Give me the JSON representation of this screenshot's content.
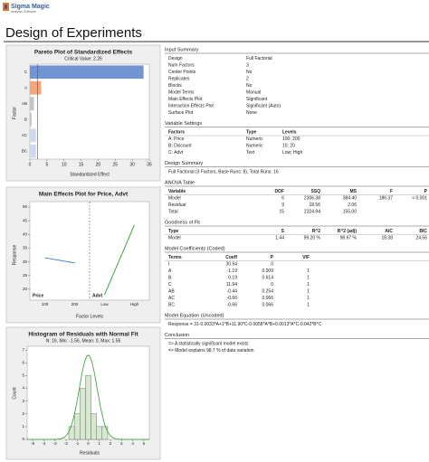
{
  "header": {
    "logo": "Sigma Magic",
    "logo_sub": "Analysis Software",
    "title": "Design of Experiments"
  },
  "chart_data": [
    {
      "type": "pareto",
      "title": "Pareto Plot of Standardized Effects",
      "subtitle": "Critical Value: 2.26",
      "xlabel": "Standardized Effect",
      "ylabel": "Factor",
      "categories": [
        "C",
        "A",
        "AB",
        "B",
        "AC",
        "BC"
      ],
      "values": [
        33.3,
        3.3,
        1.2,
        0.5,
        1.8,
        1.8
      ],
      "colors": [
        "#7394d2",
        "#f3a67c",
        "#c4c4c4",
        "#c4c4c4",
        "#cfd9ee",
        "#cfd9ee"
      ],
      "critical_value": 2.26,
      "xlim": [
        0,
        35
      ],
      "xticks": [
        0,
        5,
        10,
        15,
        20,
        25,
        30,
        35
      ]
    },
    {
      "type": "main_effects",
      "title": "Main Effects Plot for Price, Advt",
      "xlabel": "Factor Levels",
      "ylabel": "Response",
      "series": [
        {
          "name": "Price",
          "color": "#3f86c8",
          "categories": [
            "100",
            "200"
          ],
          "values": [
            31.5,
            29.6
          ]
        },
        {
          "name": "Advt",
          "color": "#3aa53a",
          "categories": [
            "Low",
            "High"
          ],
          "values": [
            18,
            43.5
          ]
        }
      ],
      "ylim": [
        16,
        52
      ],
      "yticks": [
        20,
        25,
        30,
        35,
        40,
        45,
        50
      ]
    },
    {
      "type": "histogram",
      "title": "Histogram of Residuals with Normal Fit",
      "subtitle": "N: 16, Min: -1.56, Mean: 0, Max: 1.56",
      "xlabel": "Residuals",
      "ylabel": "Count",
      "bins": [
        -1.75,
        -1.25,
        -0.75,
        -0.25,
        0.25,
        0.75,
        1.25,
        1.75
      ],
      "values": [
        1,
        2,
        4,
        5,
        2,
        1,
        1
      ],
      "color": "#d7ead0",
      "curve_color": "#2e9e2e",
      "fit_curve": {
        "mean": 0,
        "sd": 0.8,
        "scale": 6.6
      },
      "xlim": [
        -5.5,
        5.5
      ],
      "xticks": [
        -5,
        -4,
        -3,
        -2,
        -1,
        0,
        1,
        2,
        3,
        4,
        5
      ],
      "ylim": [
        0,
        7.3
      ],
      "yticks": [
        0,
        1,
        2,
        3,
        4,
        5,
        6,
        7
      ]
    }
  ],
  "sections": [
    {
      "title": "Input Summary",
      "rows": [
        [
          "Design",
          "Full Factorial"
        ],
        [
          "Num Factors",
          "3"
        ],
        [
          "Center Points",
          "No"
        ],
        [
          "Replicates",
          "2"
        ],
        [
          "Blocks",
          "No"
        ],
        [
          "Model Terms",
          "Manual"
        ],
        [
          "Main Effects Plot",
          "Significant"
        ],
        [
          "Interaction Effects Plot",
          "Significant (Auto)"
        ],
        [
          "Surface Plot",
          "None"
        ]
      ]
    },
    {
      "title": "Variable Settings",
      "columns": [
        "Factors",
        "Type",
        "Levels"
      ],
      "rows": [
        [
          "A: Price",
          "Numeric",
          "100; 200"
        ],
        [
          "B: Discount",
          "Numeric",
          "10; 20"
        ],
        [
          "C: Advt",
          "Text",
          "Low; High"
        ]
      ]
    },
    {
      "title": "Design Summary",
      "lines": [
        "Full Factorial (3 Factors, Base Runs: 8), Total Runs: 16"
      ]
    },
    {
      "title": "ANOVA Table",
      "columns": [
        "Variable",
        "DOF",
        "SSQ",
        "MS",
        "F",
        "P"
      ],
      "rows": [
        [
          "Model",
          "6",
          "2306.38",
          "384.40",
          "186.37",
          "< 0.001"
        ],
        [
          "Residual",
          "9",
          "18.56",
          "2.06",
          "",
          ""
        ],
        [
          "Total",
          "15",
          "2324.94",
          "155.00",
          "",
          ""
        ]
      ]
    },
    {
      "title": "Goodness of Fit",
      "columns": [
        "Type",
        "S",
        "R^2",
        "R^2 (adj)",
        "AIC",
        "BIC"
      ],
      "rows": [
        [
          "Model",
          "1.44",
          "99.20 %",
          "98.67 %",
          "18.38",
          "24.56"
        ]
      ]
    },
    {
      "title": "Model Coefficients (Coded)",
      "columns": [
        "Terms",
        "Coeff",
        "P",
        "VIF"
      ],
      "rows": [
        [
          "I",
          "30.94",
          "0",
          ""
        ],
        [
          "A",
          "-1.19",
          "0.009",
          "1"
        ],
        [
          "B",
          "0.19",
          "0.614",
          "1"
        ],
        [
          "C",
          "11.94",
          "0",
          "1"
        ],
        [
          "AB",
          "-0.44",
          "0.254",
          "1"
        ],
        [
          "AC",
          "-0.66",
          "0.066",
          "1"
        ],
        [
          "BC",
          "-0.66",
          "0.066",
          "1"
        ]
      ]
    },
    {
      "title": "Model Equation (Uncoded)",
      "lines": [
        "Response = 31-0.0033*A+1*B+11.90*C-0.0058*A*B+0.0013*A*C-0.042*B*C"
      ]
    },
    {
      "title": "Conclusion",
      "lines": [
        "=> A statistically significant model exists",
        "=> Model explains 98.7 % of data variation"
      ]
    }
  ]
}
